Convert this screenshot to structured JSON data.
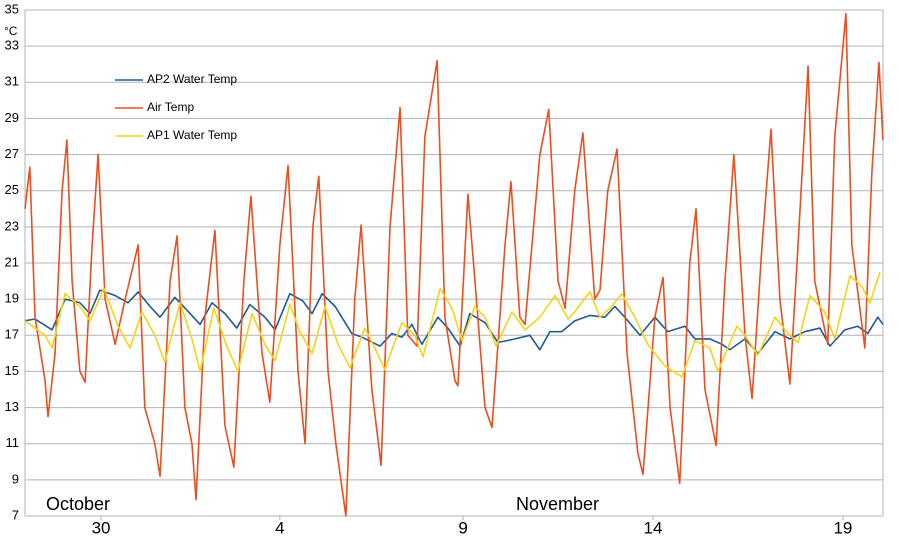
{
  "chart_data": {
    "type": "line",
    "y_unit": "°C",
    "month_labels": [
      "October",
      "November"
    ],
    "xlim": [
      0,
      23.13
    ],
    "xticks": [
      {
        "value": 2.05,
        "label": "30"
      },
      {
        "value": 6.87,
        "label": "4"
      },
      {
        "value": 11.81,
        "label": "9"
      },
      {
        "value": 16.93,
        "label": "14"
      },
      {
        "value": 22.05,
        "label": "19"
      }
    ],
    "ylim": [
      7,
      35
    ],
    "yticks": [
      7,
      9,
      11,
      13,
      15,
      17,
      19,
      21,
      23,
      25,
      27,
      29,
      31,
      33,
      35
    ],
    "grid": true,
    "legend": "top-left",
    "series": [
      {
        "name": "AP2 Water Temp",
        "color": "#1f5a96",
        "x": [
          0,
          0.27,
          0.73,
          1.08,
          1.48,
          1.75,
          2.02,
          2.43,
          2.78,
          3.05,
          3.37,
          3.64,
          4.04,
          4.45,
          4.72,
          5.04,
          5.39,
          5.71,
          6.06,
          6.47,
          6.74,
          7.14,
          7.49,
          7.74,
          8.01,
          8.36,
          8.81,
          9.08,
          9.57,
          9.89,
          10.16,
          10.43,
          10.7,
          11.13,
          11.4,
          11.73,
          11.99,
          12.4,
          12.75,
          13.21,
          13.61,
          13.88,
          14.15,
          14.47,
          14.82,
          15.23,
          15.63,
          15.9,
          16.17,
          16.58,
          16.98,
          17.33,
          17.79,
          18.06,
          18.46,
          18.79,
          19.0,
          19.41,
          19.76,
          20.22,
          20.62,
          21.02,
          21.43,
          21.7,
          22.1,
          22.45,
          22.72,
          22.99,
          23.13
        ],
        "values": [
          17.8,
          17.9,
          17.3,
          19.0,
          18.8,
          18.2,
          19.5,
          19.2,
          18.8,
          19.4,
          18.6,
          18.0,
          19.1,
          18.2,
          17.6,
          18.8,
          18.2,
          17.4,
          18.7,
          18.0,
          17.3,
          19.3,
          18.9,
          18.2,
          19.3,
          18.6,
          17.1,
          16.9,
          16.4,
          17.1,
          16.9,
          17.6,
          16.5,
          18.0,
          17.4,
          16.4,
          18.2,
          17.7,
          16.6,
          16.8,
          17.0,
          16.2,
          17.2,
          17.2,
          17.8,
          18.1,
          18.0,
          18.6,
          18.0,
          17.0,
          18.0,
          17.2,
          17.5,
          16.8,
          16.8,
          16.5,
          16.2,
          16.8,
          16.0,
          17.2,
          16.8,
          17.2,
          17.4,
          16.4,
          17.3,
          17.5,
          17.1,
          18.0,
          17.6
        ]
      },
      {
        "name": "Air Temp",
        "color": "#ee4d1e",
        "x": [
          0,
          0.13,
          0.27,
          0.54,
          0.62,
          0.81,
          1.0,
          1.13,
          1.27,
          1.48,
          1.62,
          1.81,
          1.97,
          2.16,
          2.43,
          2.7,
          3.05,
          3.23,
          3.5,
          3.64,
          3.91,
          4.1,
          4.31,
          4.5,
          4.61,
          4.85,
          5.12,
          5.39,
          5.63,
          5.9,
          6.09,
          6.39,
          6.6,
          6.87,
          7.09,
          7.36,
          7.55,
          7.76,
          7.92,
          8.17,
          8.38,
          8.65,
          8.89,
          9.06,
          9.35,
          9.6,
          9.84,
          10.11,
          10.32,
          10.57,
          10.78,
          11.11,
          11.32,
          11.59,
          11.67,
          11.94,
          12.13,
          12.4,
          12.59,
          12.94,
          13.1,
          13.34,
          13.48,
          13.88,
          14.12,
          14.37,
          14.56,
          14.82,
          15.04,
          15.36,
          15.5,
          15.71,
          15.96,
          16.23,
          16.52,
          16.66,
          16.98,
          17.2,
          17.39,
          17.65,
          17.92,
          18.09,
          18.33,
          18.63,
          18.87,
          19.11,
          19.41,
          19.6,
          19.87,
          20.11,
          20.35,
          20.62,
          20.84,
          21.11,
          21.29,
          21.64,
          21.83,
          22.13,
          22.29,
          22.64,
          22.83,
          23.02,
          23.13
        ],
        "values": [
          24,
          26.3,
          18,
          14.5,
          12.5,
          16,
          25,
          27.8,
          20,
          15,
          14.4,
          22,
          27,
          19,
          16.5,
          19,
          22,
          13,
          11,
          9.2,
          20,
          22.5,
          13,
          11,
          7.9,
          18,
          22.8,
          12,
          9.7,
          20,
          24.7,
          16,
          13.3,
          22,
          26.4,
          15,
          11,
          23,
          25.8,
          15,
          11,
          7.0,
          19,
          23.1,
          14,
          9.8,
          23,
          29.6,
          17,
          16.4,
          28,
          32.2,
          18,
          14.5,
          14.2,
          24.8,
          20,
          13,
          11.9,
          22,
          25.5,
          18,
          17.6,
          27,
          29.5,
          20,
          18.5,
          25,
          28.2,
          19,
          19.5,
          25,
          27.3,
          16,
          10.5,
          9.3,
          18,
          20.2,
          13,
          8.8,
          21,
          24,
          14,
          10.9,
          20,
          27,
          17,
          13.5,
          22,
          28.4,
          19,
          14.3,
          22,
          31.9,
          20,
          16.5,
          28,
          34.8,
          22,
          16.3,
          26,
          32.1,
          27.8
        ]
      },
      {
        "name": "AP1 Water Temp",
        "color": "#f3d41b",
        "x": [
          0,
          0.54,
          0.73,
          1.08,
          1.48,
          1.75,
          2.13,
          2.51,
          2.83,
          3.15,
          3.5,
          3.77,
          4.18,
          4.5,
          4.72,
          5.09,
          5.42,
          5.74,
          6.12,
          6.47,
          6.74,
          7.14,
          7.41,
          7.74,
          8.09,
          8.44,
          8.76,
          9.16,
          9.43,
          9.7,
          10.16,
          10.51,
          10.73,
          11.19,
          11.51,
          11.78,
          12.13,
          12.4,
          12.7,
          13.13,
          13.48,
          13.88,
          14.29,
          14.64,
          14.82,
          15.23,
          15.5,
          15.77,
          16.09,
          16.44,
          16.79,
          17.25,
          17.71,
          18.06,
          18.46,
          18.68,
          19.19,
          19.41,
          19.76,
          20.22,
          20.62,
          20.84,
          21.16,
          21.56,
          21.83,
          22.24,
          22.56,
          22.78,
          23.05
        ],
        "values": [
          17.8,
          17.0,
          16.3,
          19.3,
          18.6,
          17.8,
          19.6,
          17.5,
          16.3,
          18.3,
          17.0,
          15.5,
          18.8,
          16.8,
          15.0,
          18.5,
          16.5,
          15.0,
          18.2,
          16.5,
          15.6,
          18.7,
          17.2,
          16.0,
          18.6,
          16.5,
          15.2,
          17.4,
          16.3,
          15.1,
          17.7,
          17.0,
          15.8,
          19.6,
          18.5,
          16.7,
          18.6,
          18.0,
          16.4,
          18.3,
          17.3,
          18.0,
          19.2,
          17.9,
          18.3,
          19.4,
          18.0,
          18.5,
          19.3,
          18.0,
          16.5,
          15.3,
          14.7,
          16.7,
          16.3,
          15.0,
          17.5,
          17.0,
          15.9,
          18.0,
          17.0,
          16.6,
          19.2,
          18.3,
          16.8,
          20.3,
          19.7,
          18.8,
          20.5
        ]
      }
    ]
  }
}
